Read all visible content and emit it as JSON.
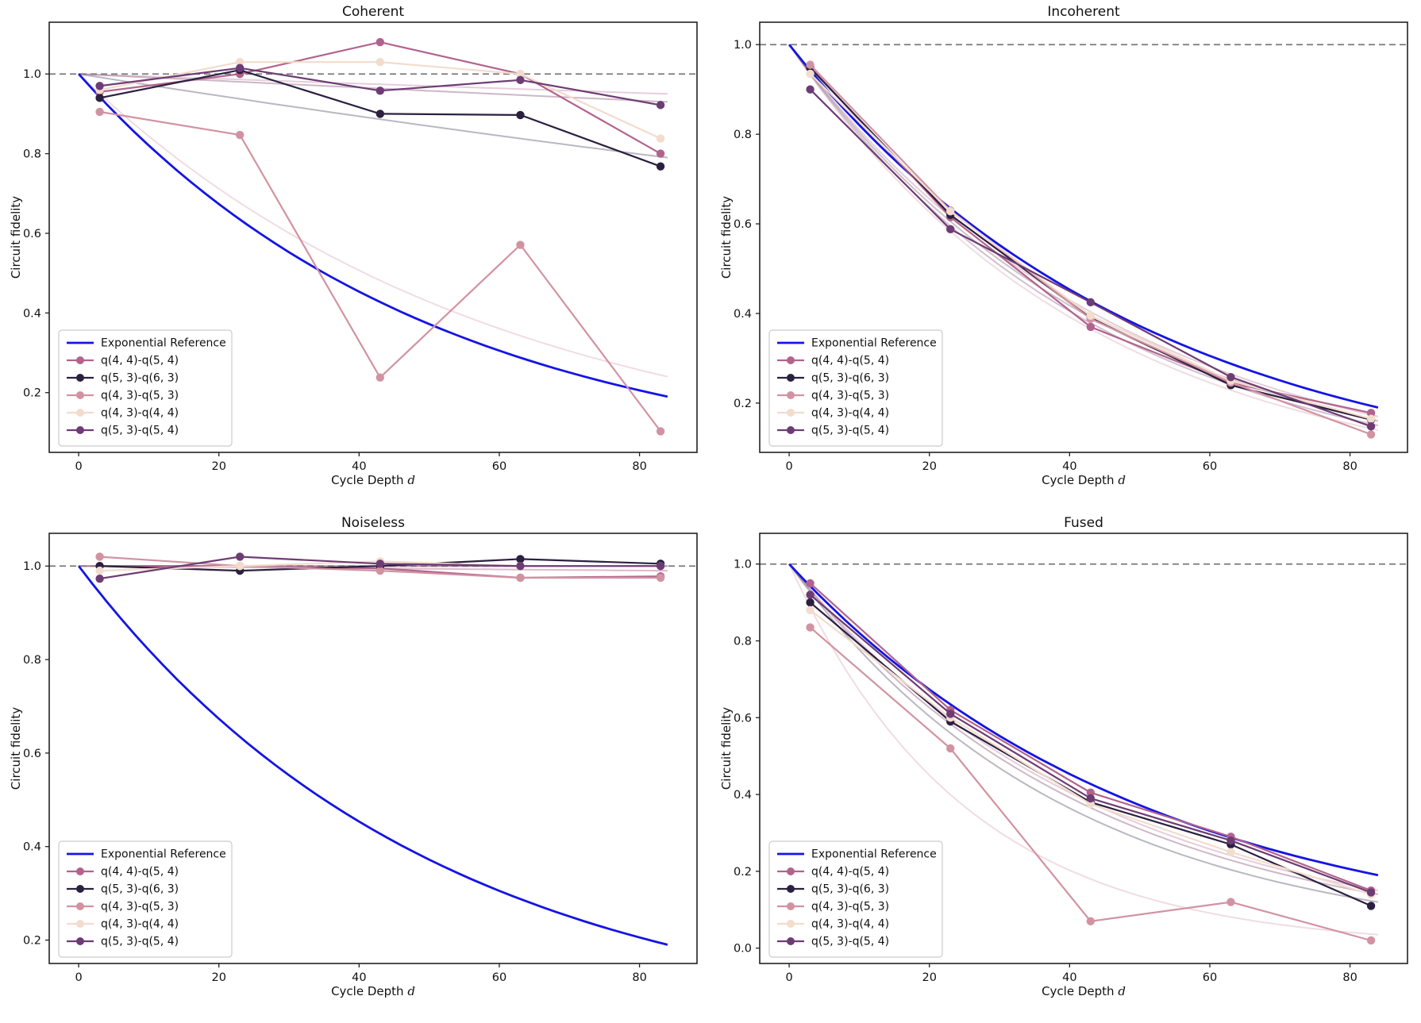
{
  "figure": {
    "background": "#ffffff",
    "text_color": "#111111",
    "hline_color": "#7a7a7a",
    "x_marker_depths": [
      3,
      23,
      43,
      63,
      83
    ]
  },
  "chart_data": [
    {
      "type": "line",
      "title": "Coherent",
      "xlabel_main": "Cycle Depth",
      "xlabel_var": "d",
      "ylabel": "Circuit fidelity",
      "x": [
        3,
        23,
        43,
        63,
        83
      ],
      "xlim": [
        -4.2,
        88.2
      ],
      "ylim": [
        0.05,
        1.13
      ],
      "xticks": [
        0,
        20,
        40,
        60,
        80
      ],
      "yticks": [
        1.0,
        0.8,
        0.6,
        0.4,
        0.2
      ],
      "hline": 1.0,
      "grid": false,
      "legend_position": "lower left",
      "reference": {
        "label": "Exponential Reference",
        "color": "#1414e6",
        "start": 1.0,
        "end_at_84": 0.19
      },
      "series": [
        {
          "name": "q(4, 4)-q(5, 4)",
          "color": "#b2638d",
          "values": [
            0.955,
            1.0,
            1.08,
            1.0,
            0.8
          ],
          "fit_end": 0.95
        },
        {
          "name": "q(5, 3)-q(6, 3)",
          "color": "#2b2040",
          "values": [
            0.94,
            1.01,
            0.9,
            0.897,
            0.768
          ],
          "fit_end": 0.79
        },
        {
          "name": "q(4, 3)-q(5, 3)",
          "color": "#d193a2",
          "values": [
            0.905,
            0.847,
            0.238,
            0.571,
            0.103
          ],
          "fit_end": 0.24
        },
        {
          "name": "q(4, 3)-q(4, 4)",
          "color": "#f2dccd",
          "values": [
            0.96,
            1.03,
            1.03,
            1.0,
            0.838
          ],
          "fit_end": 0.93
        },
        {
          "name": "q(5, 3)-q(5, 4)",
          "color": "#6d3c74",
          "values": [
            0.97,
            1.015,
            0.958,
            0.985,
            0.922
          ],
          "fit_end": 0.93
        }
      ]
    },
    {
      "type": "line",
      "title": "Incoherent",
      "xlabel_main": "Cycle Depth",
      "xlabel_var": "d",
      "ylabel": "Circuit fidelity",
      "x": [
        3,
        23,
        43,
        63,
        83
      ],
      "xlim": [
        -4.2,
        88.2
      ],
      "ylim": [
        0.09,
        1.05
      ],
      "xticks": [
        0,
        20,
        40,
        60,
        80
      ],
      "yticks": [
        1.0,
        0.8,
        0.6,
        0.4,
        0.2
      ],
      "hline": 1.0,
      "grid": false,
      "legend_position": "lower left",
      "reference": {
        "label": "Exponential Reference",
        "color": "#1414e6",
        "start": 1.0,
        "end_at_84": 0.19
      },
      "series": [
        {
          "name": "q(4, 4)-q(5, 4)",
          "color": "#b2638d",
          "values": [
            0.95,
            0.615,
            0.37,
            0.245,
            0.178
          ],
          "fit_end": 0.17
        },
        {
          "name": "q(5, 3)-q(6, 3)",
          "color": "#2b2040",
          "values": [
            0.948,
            0.62,
            0.39,
            0.24,
            0.163
          ],
          "fit_end": 0.16
        },
        {
          "name": "q(4, 3)-q(5, 3)",
          "color": "#d193a2",
          "values": [
            0.955,
            0.63,
            0.388,
            0.246,
            0.13
          ],
          "fit_end": 0.14
        },
        {
          "name": "q(4, 3)-q(4, 4)",
          "color": "#f2dccd",
          "values": [
            0.935,
            0.628,
            0.395,
            0.25,
            0.165
          ],
          "fit_end": 0.16
        },
        {
          "name": "q(5, 3)-q(5, 4)",
          "color": "#6d3c74",
          "values": [
            0.9,
            0.588,
            0.425,
            0.258,
            0.148
          ],
          "fit_end": 0.15
        }
      ]
    },
    {
      "type": "line",
      "title": "Noiseless",
      "xlabel_main": "Cycle Depth",
      "xlabel_var": "d",
      "ylabel": "Circuit fidelity",
      "x": [
        3,
        23,
        43,
        63,
        83
      ],
      "xlim": [
        -4.2,
        88.2
      ],
      "ylim": [
        0.15,
        1.07
      ],
      "xticks": [
        0,
        20,
        40,
        60,
        80
      ],
      "yticks": [
        1.0,
        0.8,
        0.6,
        0.4,
        0.2
      ],
      "hline": 1.0,
      "grid": false,
      "legend_position": "lower left",
      "reference": {
        "label": "Exponential Reference",
        "color": "#1414e6",
        "start": 1.0,
        "end_at_84": 0.19
      },
      "series": [
        {
          "name": "q(4, 4)-q(5, 4)",
          "color": "#b2638d",
          "values": [
            1.0,
            1.0,
            0.995,
            0.975,
            0.978
          ],
          "fit_end": 0.99
        },
        {
          "name": "q(5, 3)-q(6, 3)",
          "color": "#2b2040",
          "values": [
            1.0,
            0.99,
            1.0,
            1.015,
            1.005
          ],
          "fit_end": 1.0
        },
        {
          "name": "q(4, 3)-q(5, 3)",
          "color": "#d193a2",
          "values": [
            1.02,
            1.0,
            0.99,
            0.975,
            0.975
          ],
          "fit_end": 0.99
        },
        {
          "name": "q(4, 3)-q(4, 4)",
          "color": "#f2dccd",
          "values": [
            0.99,
            1.0,
            1.01,
            1.0,
            1.0
          ],
          "fit_end": 1.0
        },
        {
          "name": "q(5, 3)-q(5, 4)",
          "color": "#6d3c74",
          "values": [
            0.973,
            1.02,
            1.005,
            1.0,
            1.0
          ],
          "fit_end": 1.0
        }
      ]
    },
    {
      "type": "line",
      "title": "Fused",
      "xlabel_main": "Cycle Depth",
      "xlabel_var": "d",
      "ylabel": "Circuit fidelity",
      "x": [
        3,
        23,
        43,
        63,
        83
      ],
      "xlim": [
        -4.2,
        88.2
      ],
      "ylim": [
        -0.04,
        1.08
      ],
      "xticks": [
        0,
        20,
        40,
        60,
        80
      ],
      "yticks": [
        1.0,
        0.8,
        0.6,
        0.4,
        0.2,
        0.0
      ],
      "hline": 1.0,
      "grid": false,
      "legend_position": "lower left",
      "reference": {
        "label": "Exponential Reference",
        "color": "#1414e6",
        "start": 1.0,
        "end_at_84": 0.19
      },
      "series": [
        {
          "name": "q(4, 4)-q(5, 4)",
          "color": "#b2638d",
          "values": [
            0.95,
            0.62,
            0.405,
            0.29,
            0.15
          ],
          "fit_end": 0.15
        },
        {
          "name": "q(5, 3)-q(6, 3)",
          "color": "#2b2040",
          "values": [
            0.9,
            0.59,
            0.38,
            0.27,
            0.11
          ],
          "fit_end": 0.12
        },
        {
          "name": "q(4, 3)-q(5, 3)",
          "color": "#d193a2",
          "values": [
            0.835,
            0.52,
            0.07,
            0.12,
            0.02
          ],
          "fit_end": 0.035
        },
        {
          "name": "q(4, 3)-q(4, 4)",
          "color": "#f2dccd",
          "values": [
            0.88,
            0.6,
            0.375,
            0.25,
            0.14
          ],
          "fit_end": 0.14
        },
        {
          "name": "q(5, 3)-q(5, 4)",
          "color": "#6d3c74",
          "values": [
            0.92,
            0.61,
            0.39,
            0.28,
            0.145
          ],
          "fit_end": 0.14
        }
      ]
    }
  ]
}
